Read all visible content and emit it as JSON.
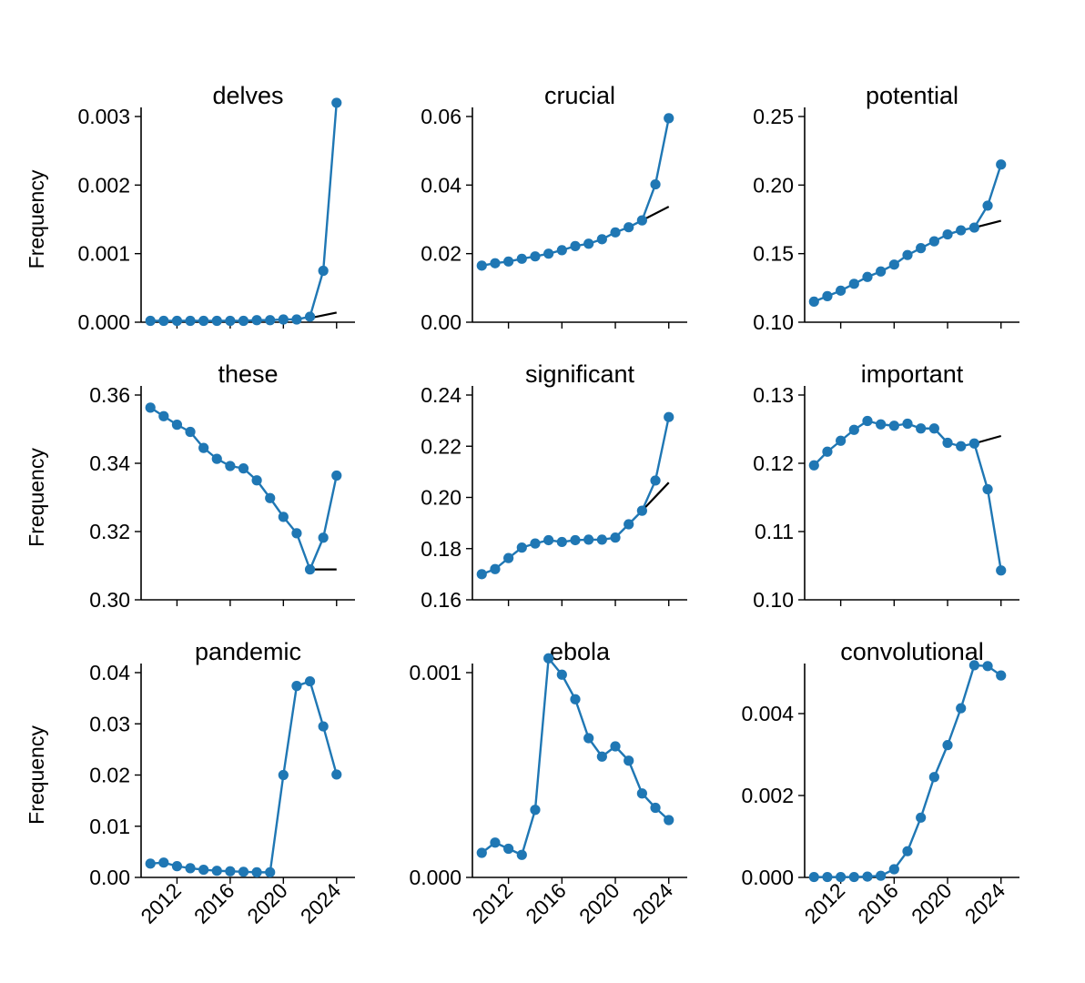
{
  "figure": {
    "ylabel": "Frequency",
    "series_color": "#1f77b4",
    "trend_color": "#000000"
  },
  "chart_data": [
    {
      "type": "line",
      "title": "delves",
      "ylabel": "Frequency",
      "x": [
        2010,
        2011,
        2012,
        2013,
        2014,
        2015,
        2016,
        2017,
        2018,
        2019,
        2020,
        2021,
        2022,
        2023,
        2024
      ],
      "values": [
        2e-05,
        2e-05,
        2e-05,
        2e-05,
        2e-05,
        2e-05,
        2e-05,
        2e-05,
        3e-05,
        3e-05,
        4e-05,
        4e-05,
        8e-05,
        0.00075,
        0.0032
      ],
      "trend": {
        "x": [
          2022,
          2024
        ],
        "values": [
          6e-05,
          0.00014
        ]
      },
      "ylim": [
        0,
        0.003
      ],
      "yticks": [
        0,
        0.001,
        0.002,
        0.003
      ],
      "ytick_labels": [
        "0.000",
        "0.001",
        "0.002",
        "0.003"
      ],
      "xlim": [
        2009.3,
        2024.7
      ],
      "xticks": [
        2012,
        2016,
        2020,
        2024
      ],
      "xtick_labels": []
    },
    {
      "type": "line",
      "title": "crucial",
      "ylabel": "",
      "x": [
        2010,
        2011,
        2012,
        2013,
        2014,
        2015,
        2016,
        2017,
        2018,
        2019,
        2020,
        2021,
        2022,
        2023,
        2024
      ],
      "values": [
        0.0165,
        0.0172,
        0.0177,
        0.0185,
        0.0192,
        0.02,
        0.021,
        0.0222,
        0.0229,
        0.0242,
        0.0262,
        0.0277,
        0.0297,
        0.0402,
        0.0595
      ],
      "trend": {
        "x": [
          2022,
          2024
        ],
        "values": [
          0.0297,
          0.0337
        ]
      },
      "ylim": [
        0,
        0.06
      ],
      "yticks": [
        0,
        0.02,
        0.04,
        0.06
      ],
      "ytick_labels": [
        "0.00",
        "0.02",
        "0.04",
        "0.06"
      ],
      "xlim": [
        2009.3,
        2024.7
      ],
      "xticks": [
        2012,
        2016,
        2020,
        2024
      ],
      "xtick_labels": []
    },
    {
      "type": "line",
      "title": "potential",
      "ylabel": "",
      "x": [
        2010,
        2011,
        2012,
        2013,
        2014,
        2015,
        2016,
        2017,
        2018,
        2019,
        2020,
        2021,
        2022,
        2023,
        2024
      ],
      "values": [
        0.115,
        0.119,
        0.123,
        0.128,
        0.133,
        0.137,
        0.142,
        0.149,
        0.154,
        0.159,
        0.164,
        0.167,
        0.169,
        0.185,
        0.215
      ],
      "trend": {
        "x": [
          2022,
          2024
        ],
        "values": [
          0.169,
          0.174
        ]
      },
      "ylim": [
        0.1,
        0.25
      ],
      "yticks": [
        0.1,
        0.15,
        0.2,
        0.25
      ],
      "ytick_labels": [
        "0.10",
        "0.15",
        "0.20",
        "0.25"
      ],
      "xlim": [
        2009.3,
        2024.7
      ],
      "xticks": [
        2012,
        2016,
        2020,
        2024
      ],
      "xtick_labels": []
    },
    {
      "type": "line",
      "title": "these",
      "ylabel": "Frequency",
      "x": [
        2010,
        2011,
        2012,
        2013,
        2014,
        2015,
        2016,
        2017,
        2018,
        2019,
        2020,
        2021,
        2022,
        2023,
        2024
      ],
      "values": [
        0.3563,
        0.3538,
        0.3513,
        0.3492,
        0.3445,
        0.3413,
        0.3392,
        0.3385,
        0.335,
        0.3298,
        0.3243,
        0.3195,
        0.3089,
        0.3182,
        0.3364
      ],
      "trend": {
        "x": [
          2022,
          2024
        ],
        "values": [
          0.3089,
          0.3089
        ]
      },
      "ylim": [
        0.3,
        0.36
      ],
      "yticks": [
        0.3,
        0.32,
        0.34,
        0.36
      ],
      "ytick_labels": [
        "0.30",
        "0.32",
        "0.34",
        "0.36"
      ],
      "xlim": [
        2009.3,
        2024.7
      ],
      "xticks": [
        2012,
        2016,
        2020,
        2024
      ],
      "xtick_labels": []
    },
    {
      "type": "line",
      "title": "significant",
      "ylabel": "",
      "x": [
        2010,
        2011,
        2012,
        2013,
        2014,
        2015,
        2016,
        2017,
        2018,
        2019,
        2020,
        2021,
        2022,
        2023,
        2024
      ],
      "values": [
        0.17,
        0.172,
        0.1763,
        0.1804,
        0.182,
        0.1833,
        0.1826,
        0.1833,
        0.1835,
        0.1835,
        0.1843,
        0.1895,
        0.1948,
        0.2066,
        0.2314
      ],
      "trend": {
        "x": [
          2022,
          2024
        ],
        "values": [
          0.1948,
          0.2058
        ]
      },
      "ylim": [
        0.16,
        0.24
      ],
      "yticks": [
        0.16,
        0.18,
        0.2,
        0.22,
        0.24
      ],
      "ytick_labels": [
        "0.16",
        "0.18",
        "0.20",
        "0.22",
        "0.24"
      ],
      "xlim": [
        2009.3,
        2024.7
      ],
      "xticks": [
        2012,
        2016,
        2020,
        2024
      ],
      "xtick_labels": []
    },
    {
      "type": "line",
      "title": "important",
      "ylabel": "",
      "x": [
        2010,
        2011,
        2012,
        2013,
        2014,
        2015,
        2016,
        2017,
        2018,
        2019,
        2020,
        2021,
        2022,
        2023,
        2024
      ],
      "values": [
        0.1197,
        0.1217,
        0.1233,
        0.1249,
        0.1262,
        0.1257,
        0.1255,
        0.1258,
        0.1251,
        0.1251,
        0.123,
        0.1225,
        0.1229,
        0.1162,
        0.1043
      ],
      "trend": {
        "x": [
          2022,
          2024
        ],
        "values": [
          0.1229,
          0.124
        ]
      },
      "ylim": [
        0.1,
        0.13
      ],
      "yticks": [
        0.1,
        0.11,
        0.12,
        0.13
      ],
      "ytick_labels": [
        "0.10",
        "0.11",
        "0.12",
        "0.13"
      ],
      "xlim": [
        2009.3,
        2024.7
      ],
      "xticks": [
        2012,
        2016,
        2020,
        2024
      ],
      "xtick_labels": []
    },
    {
      "type": "line",
      "title": "pandemic",
      "ylabel": "Frequency",
      "x": [
        2010,
        2011,
        2012,
        2013,
        2014,
        2015,
        2016,
        2017,
        2018,
        2019,
        2020,
        2021,
        2022,
        2023,
        2024
      ],
      "values": [
        0.0027,
        0.0029,
        0.0022,
        0.0018,
        0.0015,
        0.0013,
        0.0012,
        0.0011,
        0.001,
        0.001,
        0.02,
        0.0374,
        0.0383,
        0.0295,
        0.0201
      ],
      "ylim": [
        0,
        0.04
      ],
      "yticks": [
        0,
        0.01,
        0.02,
        0.03,
        0.04
      ],
      "ytick_labels": [
        "0.00",
        "0.01",
        "0.02",
        "0.03",
        "0.04"
      ],
      "xlim": [
        2009.3,
        2024.7
      ],
      "xticks": [
        2012,
        2016,
        2020,
        2024
      ],
      "xtick_labels": [
        "2012",
        "2016",
        "2020",
        "2024"
      ]
    },
    {
      "type": "line",
      "title": "ebola",
      "ylabel": "",
      "x": [
        2010,
        2011,
        2012,
        2013,
        2014,
        2015,
        2016,
        2017,
        2018,
        2019,
        2020,
        2021,
        2022,
        2023,
        2024
      ],
      "values": [
        0.00012,
        0.00017,
        0.00014,
        0.00011,
        0.00033,
        0.00107,
        0.00099,
        0.00087,
        0.00068,
        0.00059,
        0.00064,
        0.00057,
        0.00041,
        0.00034,
        0.00028
      ],
      "ylim": [
        0,
        0.001
      ],
      "yticks": [
        0,
        0.001
      ],
      "ytick_labels": [
        "0.000",
        "0.001"
      ],
      "xlim": [
        2009.3,
        2024.7
      ],
      "xticks": [
        2012,
        2016,
        2020,
        2024
      ],
      "xtick_labels": [
        "2012",
        "2016",
        "2020",
        "2024"
      ]
    },
    {
      "type": "line",
      "title": "convolutional",
      "ylabel": "",
      "x": [
        2010,
        2011,
        2012,
        2013,
        2014,
        2015,
        2016,
        2017,
        2018,
        2019,
        2020,
        2021,
        2022,
        2023,
        2024
      ],
      "values": [
        1e-05,
        1e-05,
        1e-05,
        1e-05,
        2e-05,
        4e-05,
        0.0002,
        0.00064,
        0.00146,
        0.00245,
        0.00323,
        0.00413,
        0.00518,
        0.00516,
        0.00493
      ],
      "ylim": [
        0,
        0.005
      ],
      "yticks": [
        0,
        0.002,
        0.004
      ],
      "ytick_labels": [
        "0.000",
        "0.002",
        "0.004"
      ],
      "xlim": [
        2009.3,
        2024.7
      ],
      "xticks": [
        2012,
        2016,
        2020,
        2024
      ],
      "xtick_labels": [
        "2012",
        "2016",
        "2020",
        "2024"
      ]
    }
  ]
}
